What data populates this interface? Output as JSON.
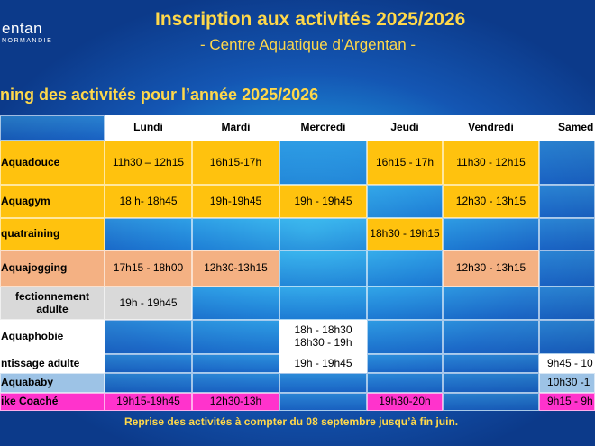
{
  "logo": {
    "name": "entan",
    "sub": "NORMANDIE"
  },
  "header": {
    "title": "Inscription aux activités 2025/2026",
    "subtitle": "- Centre Aquatique d’Argentan -"
  },
  "planning_title": "ning des activités pour l’année 2025/2026",
  "days": [
    "Lundi",
    "Mardi",
    "Mercredi",
    "Jeudi",
    "Vendredi",
    "Samed"
  ],
  "activities": [
    {
      "label": "Aquadouce",
      "color": "#ffc20e",
      "cells": [
        "11h30 – 12h15",
        "16h15-17h",
        "",
        "16h15 - 17h",
        "11h30 - 12h15",
        ""
      ]
    },
    {
      "label": "Aquagym",
      "color": "#ffc20e",
      "cells": [
        "18 h- 18h45",
        "19h-19h45",
        "19h - 19h45",
        "",
        "12h30 - 13h15",
        ""
      ]
    },
    {
      "label": "quatraining",
      "color": "#ffc20e",
      "cells": [
        "",
        "",
        "",
        "18h30 - 19h15",
        "",
        ""
      ]
    },
    {
      "label": "Aquajogging",
      "color": "#f4b183",
      "cells": [
        "17h15 - 18h00",
        "12h30-13h15",
        "",
        "",
        "12h30 - 13h15",
        ""
      ]
    },
    {
      "label": "fectionnement adulte",
      "color": "#d9d9d9",
      "cells": [
        "19h - 19h45",
        "",
        "",
        "",
        "",
        ""
      ]
    },
    {
      "label": "Aquaphobie",
      "color": "#ffffff",
      "cells": [
        "",
        "",
        "18h - 18h30 18h30 - 19h",
        "",
        "",
        ""
      ]
    },
    {
      "label": "ntissage adulte",
      "color": "#ffffff",
      "cells": [
        "",
        "",
        "19h - 19h45",
        "",
        "",
        "9h45 - 10"
      ]
    },
    {
      "label": "Aquababy",
      "color": "#9dc3e6",
      "cells": [
        "",
        "",
        "",
        "",
        "",
        "10h30 -1"
      ]
    },
    {
      "label": "ike Coaché",
      "color": "#ff33cc",
      "cells": [
        "19h15-19h45",
        "12h30-13h",
        "",
        "19h30-20h",
        "",
        "9h15 - 9h"
      ]
    }
  ],
  "footer": "Reprise des activités à compter du 08 septembre jusqu’à fin juin."
}
